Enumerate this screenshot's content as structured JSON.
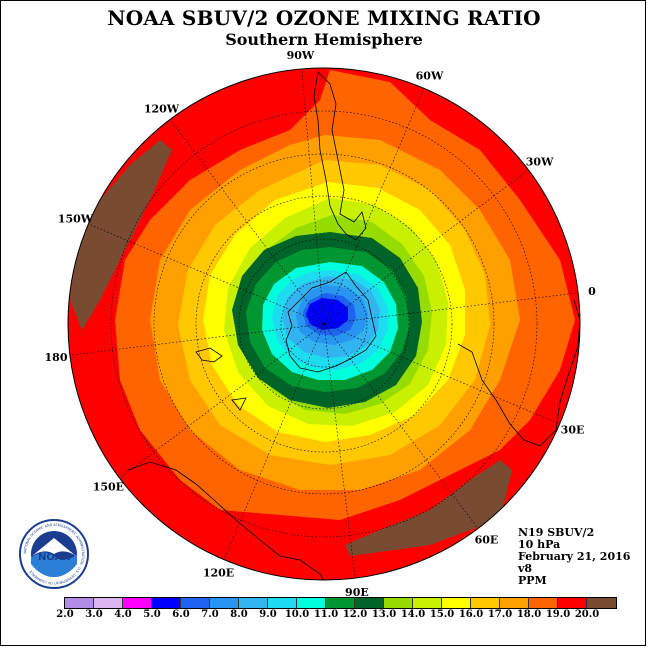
{
  "header": {
    "title": "NOAA SBUV/2 OZONE MIXING RATIO",
    "subtitle": "Southern Hemisphere"
  },
  "longitude_labels": [
    "90W",
    "60W",
    "30W",
    "0",
    "30E",
    "60E",
    "90E",
    "120E",
    "150E",
    "180",
    "150W",
    "120W"
  ],
  "info": {
    "instrument": "N19 SBUV/2",
    "level": "10 hPa",
    "date": "February 21, 2016",
    "version": "v8",
    "units": "PPM"
  },
  "logo": {
    "text": "NOAA",
    "ring_text": "NATIONAL OCEANIC AND ATMOSPHERIC ADMINISTRATION · U.S. DEPARTMENT OF COMMERCE"
  },
  "colorbar": {
    "ticks": [
      "2.0",
      "3.0",
      "4.0",
      "5.0",
      "6.0",
      "7.0",
      "8.0",
      "9.0",
      "10.0",
      "11.0",
      "12.0",
      "13.0",
      "14.0",
      "15.0",
      "16.0",
      "17.0",
      "18.0",
      "19.0",
      "20.0"
    ],
    "colors": [
      "#b48ce6",
      "#dcb4f0",
      "#ff00ff",
      "#0000ff",
      "#1e64f0",
      "#2896f0",
      "#32b4f0",
      "#1edcf0",
      "#00ffdc",
      "#009632",
      "#006428",
      "#96dc00",
      "#c8f000",
      "#ffff00",
      "#ffc800",
      "#ffa000",
      "#ff6400",
      "#ff0000",
      "#784b32"
    ]
  },
  "map_colors": {
    "brown": "#784b32",
    "red": "#ff0000",
    "orange_red": "#ff6400",
    "orange": "#ffa000",
    "gold": "#ffc800",
    "yellow": "#ffff00",
    "yellow_green": "#c8f000",
    "light_green": "#96dc00",
    "dark_green": "#006428",
    "green": "#009632",
    "aqua": "#00ffdc",
    "cyan": "#1edcf0",
    "sky": "#32b4f0",
    "light_blue": "#2896f0",
    "mid_blue": "#1e64f0",
    "blue": "#0000ff"
  }
}
